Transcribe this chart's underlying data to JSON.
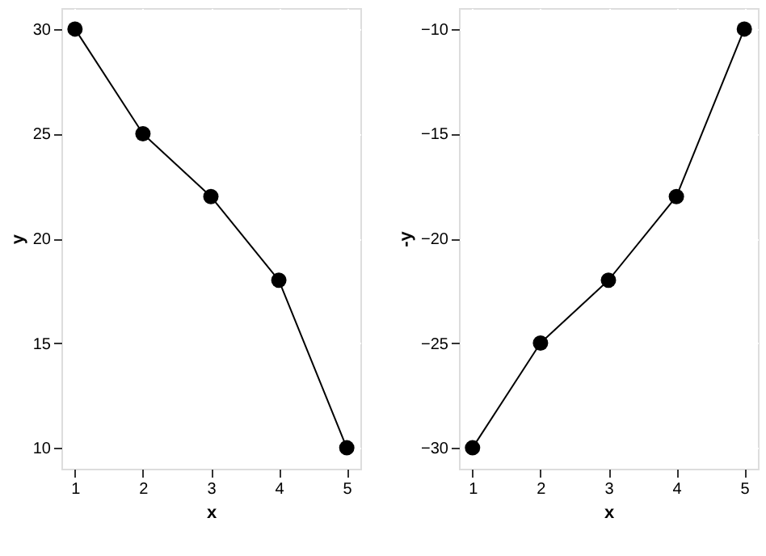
{
  "chart_data": [
    {
      "type": "line",
      "x": [
        1,
        2,
        3,
        4,
        5
      ],
      "values": [
        30,
        25,
        22,
        18,
        10
      ],
      "color": "#000000",
      "xlabel": "x",
      "ylabel": "y",
      "xlim": [
        0.8,
        5.2
      ],
      "xticks": [
        1,
        2,
        3,
        4,
        5
      ],
      "ylim": [
        9,
        31
      ],
      "yticks": [
        10,
        15,
        20,
        25,
        30
      ],
      "grid": true,
      "marker": "circle",
      "line_style": "solid"
    },
    {
      "type": "line",
      "x": [
        1,
        2,
        3,
        4,
        5
      ],
      "values": [
        -30,
        -25,
        -22,
        -18,
        -10
      ],
      "color": "#000000",
      "xlabel": "x",
      "ylabel": "-y",
      "xlim": [
        0.8,
        5.2
      ],
      "xticks": [
        1,
        2,
        3,
        4,
        5
      ],
      "ylim": [
        -31,
        -9
      ],
      "yticks": [
        -30,
        -25,
        -20,
        -15,
        -10
      ],
      "grid": true,
      "marker": "circle",
      "line_style": "solid"
    }
  ]
}
